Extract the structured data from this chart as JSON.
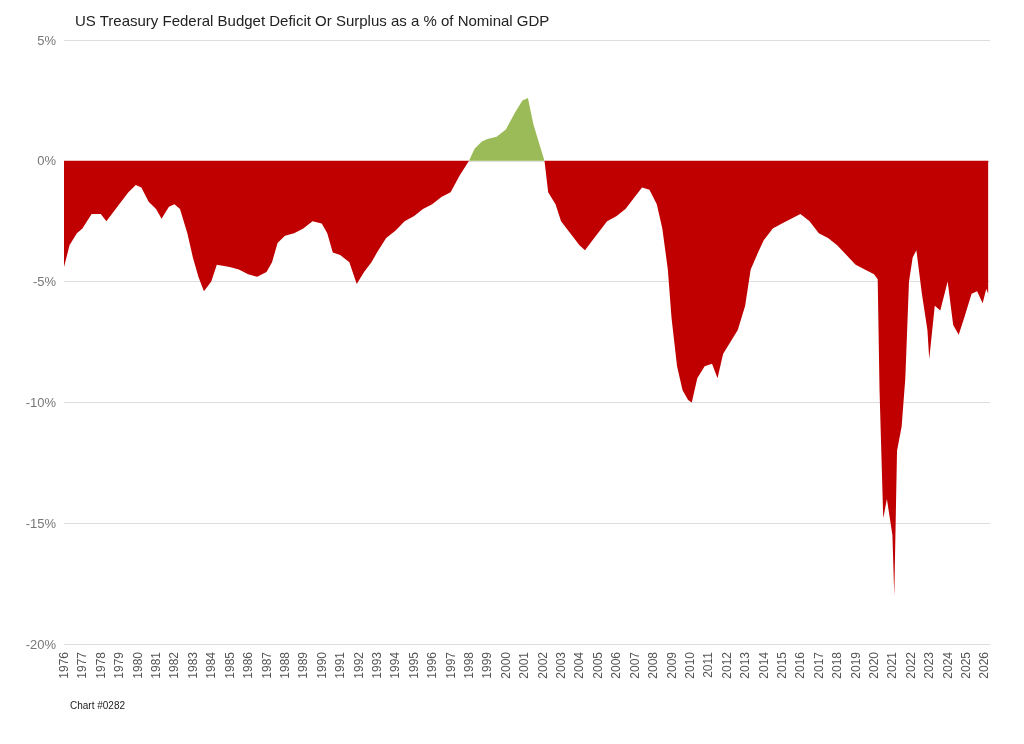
{
  "chart_data": {
    "type": "area",
    "title": "US Treasury Federal Budget Deficit Or Surplus as a % of Nominal GDP",
    "annotations": [
      "Chart #0282"
    ],
    "xlim": [
      1976,
      2026.3
    ],
    "xticks": [
      1976,
      1977,
      1978,
      1979,
      1980,
      1981,
      1982,
      1983,
      1984,
      1985,
      1986,
      1987,
      1988,
      1989,
      1990,
      1991,
      1992,
      1993,
      1994,
      1995,
      1996,
      1997,
      1998,
      1999,
      2000,
      2001,
      2002,
      2003,
      2004,
      2005,
      2006,
      2007,
      2008,
      2009,
      2010,
      2011,
      2012,
      2013,
      2014,
      2015,
      2016,
      2017,
      2018,
      2019,
      2020,
      2021,
      2022,
      2023,
      2024,
      2025,
      2026
    ],
    "ylim": [
      -20,
      5
    ],
    "yticks": [
      {
        "value": -20,
        "label": "-20%"
      },
      {
        "value": -15,
        "label": "-15%"
      },
      {
        "value": -10,
        "label": "-10%"
      },
      {
        "value": -5,
        "label": "-5%"
      },
      {
        "value": 0,
        "label": "0%"
      },
      {
        "value": 5,
        "label": "5%"
      }
    ],
    "grid": "y",
    "series": [
      {
        "color": "#c00000",
        "x": [
          1976,
          1976.3,
          1976.7,
          1977,
          1977.5,
          1978,
          1978.3,
          1978.6,
          1979,
          1979.5,
          1979.9,
          1980.2,
          1980.6,
          1981,
          1981.3,
          1981.7,
          1982,
          1982.3,
          1982.7,
          1983,
          1983.3,
          1983.6,
          1984,
          1984.3,
          1985,
          1985.5,
          1986,
          1986.5,
          1987,
          1987.3,
          1987.6,
          1988,
          1988.5,
          1989,
          1989.5,
          1990,
          1990.3,
          1990.6,
          1991,
          1991.5,
          1991.9,
          1992.3,
          1992.7,
          1993,
          1993.5,
          1994,
          1994.5,
          1995,
          1995.5,
          1996,
          1996.5,
          1997,
          1997.5,
          1998,
          2002.1,
          2002.3,
          2002.7,
          2003,
          2003.5,
          2004,
          2004.3,
          2004.7,
          2005,
          2005.5,
          2006,
          2006.5,
          2007,
          2007.4,
          2007.8,
          2008.2,
          2008.5,
          2008.8,
          2009,
          2009.3,
          2009.6,
          2009.9,
          2010.1,
          2010.4,
          2010.8,
          2011.2,
          2011.5,
          2011.8,
          2012.2,
          2012.6,
          2013,
          2013.3,
          2013.7,
          2014,
          2014.5,
          2015,
          2015.5,
          2016,
          2016.5,
          2017,
          2017.5,
          2018,
          2018.5,
          2019,
          2019.5,
          2020,
          2020.2,
          2020.3,
          2020.5,
          2020.7,
          2021,
          2021.1,
          2021.25,
          2021.5,
          2021.7,
          2021.9,
          2022.1,
          2022.3,
          2022.6,
          2022.9,
          2023,
          2023.3,
          2023.6,
          2024,
          2024.3,
          2024.6,
          2024.9,
          2025.3,
          2025.6,
          2025.9,
          2026.1,
          2026.2
        ],
        "values": [
          -4.4,
          -3.5,
          -3,
          -2.8,
          -2.2,
          -2.2,
          -2.5,
          -2.2,
          -1.8,
          -1.3,
          -1,
          -1.1,
          -1.7,
          -2,
          -2.4,
          -1.9,
          -1.8,
          -2,
          -3,
          -4,
          -4.8,
          -5.4,
          -5,
          -4.3,
          -4.4,
          -4.5,
          -4.7,
          -4.8,
          -4.6,
          -4.2,
          -3.4,
          -3.1,
          -3,
          -2.8,
          -2.5,
          -2.6,
          -3,
          -3.8,
          -3.9,
          -4.2,
          -5.1,
          -4.6,
          -4.2,
          -3.8,
          -3.2,
          -2.9,
          -2.5,
          -2.3,
          -2,
          -1.8,
          -1.5,
          -1.3,
          -0.6,
          0,
          0,
          -1.3,
          -1.8,
          -2.5,
          -3,
          -3.5,
          -3.7,
          -3.3,
          -3,
          -2.5,
          -2.3,
          -2,
          -1.5,
          -1.1,
          -1.2,
          -1.8,
          -2.8,
          -4.5,
          -6.5,
          -8.5,
          -9.5,
          -9.9,
          -10,
          -9,
          -8.5,
          -8.4,
          -9,
          -8,
          -7.5,
          -7,
          -6,
          -4.5,
          -3.8,
          -3.3,
          -2.8,
          -2.6,
          -2.4,
          -2.2,
          -2.5,
          -3,
          -3.2,
          -3.5,
          -3.9,
          -4.3,
          -4.5,
          -4.7,
          -4.9,
          -9.5,
          -14.8,
          -14,
          -15.5,
          -18,
          -12,
          -11,
          -9,
          -5,
          -4,
          -3.7,
          -5.5,
          -7,
          -8.2,
          -6,
          -6.2,
          -5,
          -6.8,
          -7.2,
          -6.5,
          -5.5,
          -5.4,
          -5.9,
          -5.3,
          -5.5
        ]
      },
      {
        "color": "#9bbb59",
        "x": [
          1998,
          1998.3,
          1998.7,
          1999,
          1999.5,
          2000,
          2000.5,
          2000.9,
          2001.2,
          2001.5,
          2001.9,
          2002.1
        ],
        "values": [
          0,
          0.5,
          0.8,
          0.9,
          1,
          1.3,
          2,
          2.5,
          2.6,
          1.5,
          0.5,
          0
        ]
      }
    ]
  }
}
